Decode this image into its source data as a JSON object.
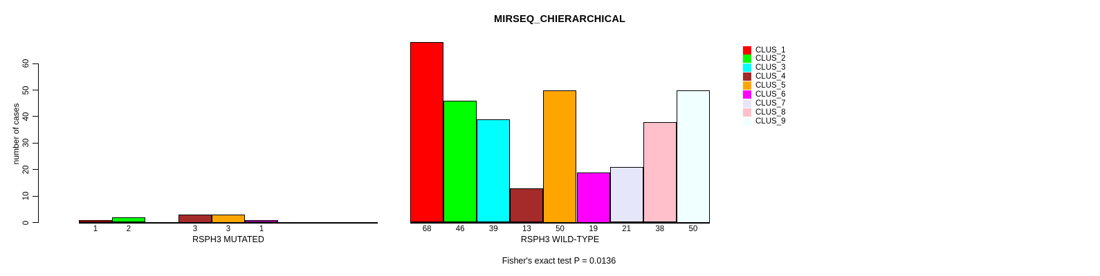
{
  "title": "MIRSEQ_CHIERARCHICAL",
  "y_axis": {
    "label": "number of cases",
    "ticks": [
      0,
      10,
      20,
      30,
      40,
      50,
      60
    ]
  },
  "legend": {
    "entries": [
      {
        "label": "CLUS_1",
        "color": "#FF0000"
      },
      {
        "label": "CLUS_2",
        "color": "#00FF00"
      },
      {
        "label": "CLUS_3",
        "color": "#00FFFF"
      },
      {
        "label": "CLUS_4",
        "color": "#A52A2A"
      },
      {
        "label": "CLUS_5",
        "color": "#FFA500"
      },
      {
        "label": "CLUS_6",
        "color": "#FF00FF"
      },
      {
        "label": "CLUS_7",
        "color": "#E6E6FA"
      },
      {
        "label": "CLUS_8",
        "color": "#FFC0CB"
      },
      {
        "label": "CLUS_9",
        "color": "#F0FFFF"
      }
    ]
  },
  "groups": [
    {
      "label": "RSPH3 MUTATED",
      "values": [
        1,
        2,
        0,
        3,
        3,
        1,
        0,
        0,
        0
      ]
    },
    {
      "label": "RSPH3 WILD-TYPE",
      "values": [
        68,
        46,
        39,
        13,
        50,
        19,
        21,
        38,
        50
      ]
    }
  ],
  "footer": "Fisher's exact test P = 0.0136",
  "chart_data": {
    "type": "bar",
    "title": "MIRSEQ_CHIERARCHICAL",
    "xlabel": "",
    "ylabel": "number of cases",
    "ylim": [
      0,
      60
    ],
    "yticks": [
      0,
      10,
      20,
      30,
      40,
      50,
      60
    ],
    "categories": [
      "CLUS_1",
      "CLUS_2",
      "CLUS_3",
      "CLUS_4",
      "CLUS_5",
      "CLUS_6",
      "CLUS_7",
      "CLUS_8",
      "CLUS_9"
    ],
    "colors": [
      "#FF0000",
      "#00FF00",
      "#00FFFF",
      "#A52A2A",
      "#FFA500",
      "#FF00FF",
      "#E6E6FA",
      "#FFC0CB",
      "#F0FFFF"
    ],
    "series": [
      {
        "name": "RSPH3 MUTATED",
        "values": [
          1,
          2,
          0,
          3,
          3,
          1,
          0,
          0,
          0
        ]
      },
      {
        "name": "RSPH3 WILD-TYPE",
        "values": [
          68,
          46,
          39,
          13,
          50,
          19,
          21,
          38,
          50
        ]
      }
    ],
    "bar_value_labels_shown": true,
    "grid": false,
    "legend_position": "right",
    "annotation": "Fisher's exact test P = 0.0136"
  }
}
